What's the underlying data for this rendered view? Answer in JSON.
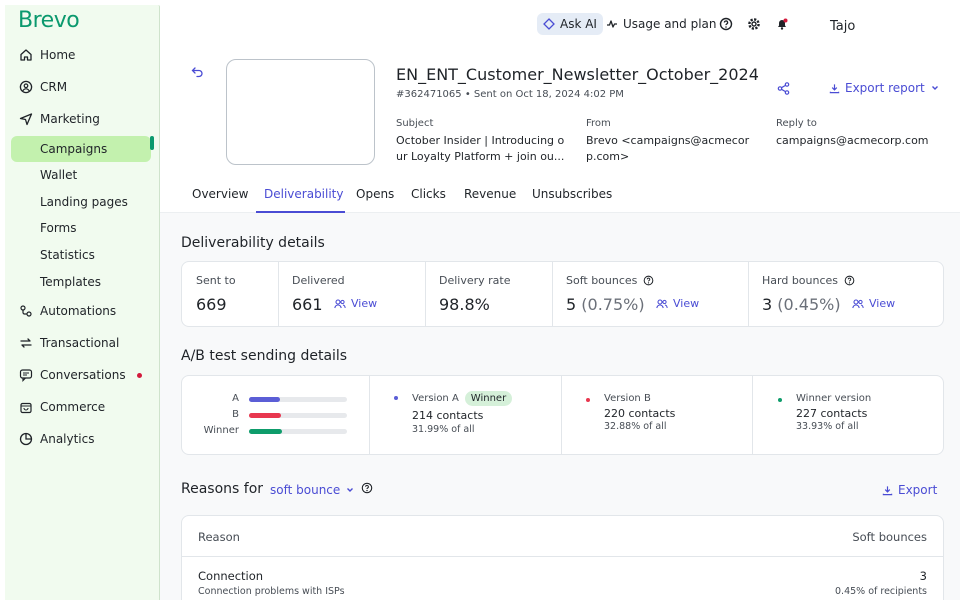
{
  "brand": {
    "logo": "Brevo",
    "accent": "#0b996e",
    "link": "#4a4cd4"
  },
  "sidebar": {
    "items": [
      {
        "label": "Home",
        "icon": "home-icon"
      },
      {
        "label": "CRM",
        "icon": "contacts-icon"
      },
      {
        "label": "Marketing",
        "icon": "send-icon"
      },
      {
        "label": "Campaigns"
      },
      {
        "label": "Wallet"
      },
      {
        "label": "Landing pages"
      },
      {
        "label": "Forms"
      },
      {
        "label": "Statistics"
      },
      {
        "label": "Templates"
      },
      {
        "label": "Automations",
        "icon": "automation-icon"
      },
      {
        "label": "Transactional",
        "icon": "transactional-icon"
      },
      {
        "label": "Conversations",
        "icon": "chat-icon"
      },
      {
        "label": "Commerce",
        "icon": "bag-icon"
      },
      {
        "label": "Analytics",
        "icon": "pie-icon"
      }
    ]
  },
  "topbar": {
    "ask_ai": "Ask AI",
    "usage": "Usage and plan",
    "user": "Tajo"
  },
  "campaign": {
    "title": "EN_ENT_Customer_Newsletter_October_2024",
    "meta": "#362471065 • Sent on Oct 18, 2024 4:02 PM",
    "export_report": "Export report",
    "subject_label": "Subject",
    "subject_line1": "October Insider | Introducing o",
    "subject_line2": "ur Loyalty Platform + join ou...",
    "from_label": "From",
    "from_line1": "Brevo <campaigns@acmecor",
    "from_line2": "p.com>",
    "reply_label": "Reply to",
    "reply_value": "campaigns@acmecorp.com"
  },
  "tabs": [
    "Overview",
    "Deliverability",
    "Opens",
    "Clicks",
    "Revenue",
    "Unsubscribes"
  ],
  "active_tab": "Deliverability",
  "deliverability": {
    "title": "Deliverability details",
    "sent_label": "Sent to",
    "sent_value": "669",
    "delivered_label": "Delivered",
    "delivered_value": "661",
    "rate_label": "Delivery rate",
    "rate_value": "98.8%",
    "soft_label": "Soft bounces",
    "soft_value": "5",
    "soft_pct": "(0.75%)",
    "hard_label": "Hard bounces",
    "hard_value": "3",
    "hard_pct": "(0.45%)",
    "view": "View"
  },
  "ab_test": {
    "title": "A/B test sending details",
    "rows": [
      {
        "label": "A",
        "color": "#5b5ed6",
        "fill": 0.32
      },
      {
        "label": "B",
        "color": "#e8374f",
        "fill": 0.33
      },
      {
        "label": "Winner",
        "color": "#0e9c6b",
        "fill": 0.34
      }
    ],
    "versions": [
      {
        "name": "Version A",
        "badge": "Winner",
        "contacts": "214 contacts",
        "pct": "31.99% of all",
        "color": "#5b5ed6"
      },
      {
        "name": "Version B",
        "contacts": "220 contacts",
        "pct": "32.88% of all",
        "color": "#e8374f"
      },
      {
        "name": "Winner version",
        "contacts": "227 contacts",
        "pct": "33.93% of all",
        "color": "#0e9c6b"
      }
    ]
  },
  "reasons": {
    "title": "Reasons for",
    "dropdown": "soft bounce",
    "export": "Export",
    "col_reason": "Reason",
    "col_value": "Soft bounces",
    "rows": [
      {
        "reason": "Connection",
        "detail": "Connection problems with ISPs",
        "value": "3",
        "pct": "0.45% of recipients"
      }
    ]
  }
}
